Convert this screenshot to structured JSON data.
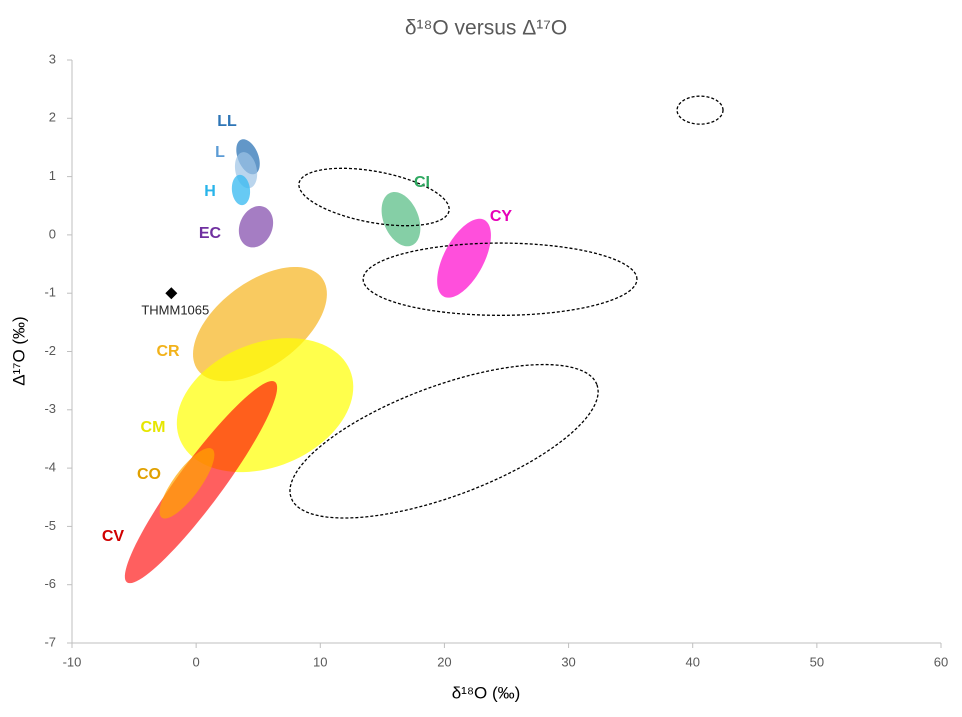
{
  "chart_data": {
    "type": "region-scatter",
    "title": "δ¹⁸O versus Δ¹⁷O",
    "x_label": "δ¹⁸O (‰)",
    "y_label": "Δ¹⁷O (‰)",
    "xlim": [
      -10,
      60
    ],
    "ylim": [
      -7,
      3
    ],
    "xticks": [
      -10,
      0,
      10,
      20,
      30,
      40,
      50,
      60
    ],
    "yticks": [
      -7,
      -6,
      -5,
      -4,
      -3,
      -2,
      -1,
      0,
      1,
      2,
      3
    ],
    "regions": [
      {
        "name": "CR",
        "color": "#f7b41cb3",
        "label_color": "#f2b21a",
        "center": [
          5.14,
          -1.53
        ],
        "axis1": [
          10.14,
          -0.74
        ],
        "axis2": [
          7.16,
          -2.11
        ]
      },
      {
        "name": "CM",
        "color": "#ffff00b3",
        "label_color": "#e6e600",
        "center": [
          5.55,
          -2.92
        ],
        "axis1": [
          12.39,
          -2.32
        ],
        "axis2": [
          7.48,
          -3.9
        ]
      },
      {
        "name": "CV",
        "color": "#ff0000a0",
        "label_color": "#d00000",
        "center": [
          0.39,
          -4.24
        ],
        "axis1": [
          6.35,
          -2.52
        ],
        "axis2": [
          1.84,
          -4.46
        ]
      },
      {
        "name": "CO",
        "color": "#ffa500b3",
        "label_color": "#e0a000",
        "center": [
          -0.74,
          -4.26
        ],
        "axis1": [
          1.28,
          -3.67
        ],
        "axis2": [
          0.15,
          -4.39
        ]
      },
      {
        "name": "LL",
        "color": "#2e75b6c0",
        "label_color": "#2e75b6",
        "center": [
          4.18,
          1.34
        ],
        "axis1": [
          3.86,
          1.64
        ],
        "axis2": [
          5.07,
          1.32
        ]
      },
      {
        "name": "L",
        "color": "#9dc3e6b3",
        "label_color": "#5b9bd5",
        "center": [
          4.02,
          1.11
        ],
        "axis1": [
          3.86,
          1.42
        ],
        "axis2": [
          4.9,
          1.1
        ]
      },
      {
        "name": "H",
        "color": "#35b8f0c0",
        "label_color": "#28b4ea",
        "center": [
          3.61,
          0.77
        ],
        "axis1": [
          3.53,
          1.03
        ],
        "axis2": [
          4.34,
          0.77
        ]
      },
      {
        "name": "EC",
        "color": "#7030a0a0",
        "label_color": "#7030a0",
        "center": [
          4.82,
          0.14
        ],
        "axis1": [
          5.31,
          0.49
        ],
        "axis2": [
          6.11,
          0.08
        ]
      },
      {
        "name": "CI",
        "color": "#3cb371a0",
        "label_color": "#2ea860",
        "center": [
          16.5,
          0.27
        ],
        "axis1": [
          15.62,
          0.72
        ],
        "axis2": [
          17.79,
          0.39
        ]
      },
      {
        "name": "CY",
        "color": "#ff00ccb0",
        "label_color": "#e600b8",
        "center": [
          21.58,
          -0.4
        ],
        "axis1": [
          23.19,
          0.26
        ],
        "axis2": [
          23.03,
          -0.55
        ]
      },
      {
        "color": "#000000",
        "dashed": true,
        "center": [
          40.59,
          2.14
        ],
        "axis1": [
          42.44,
          2.14
        ],
        "axis2": [
          40.59,
          2.38
        ]
      },
      {
        "color": "#000000",
        "dashed": true,
        "center": [
          14.33,
          0.65
        ],
        "axis1": [
          20.37,
          0.41
        ],
        "axis2": [
          13.92,
          0.22
        ]
      },
      {
        "color": "#000000",
        "dashed": true,
        "center": [
          24.48,
          -0.76
        ],
        "axis1": [
          35.51,
          -0.76
        ],
        "axis2": [
          24.48,
          -0.14
        ]
      },
      {
        "color": "#000000",
        "dashed": true,
        "center": [
          19.97,
          -3.54
        ],
        "axis1": [
          32.29,
          -2.57
        ],
        "axis2": [
          21.5,
          -4.43
        ]
      }
    ],
    "points": [
      {
        "name": "THMM1065",
        "x": -2,
        "y": -1,
        "color": "#000000"
      }
    ]
  }
}
